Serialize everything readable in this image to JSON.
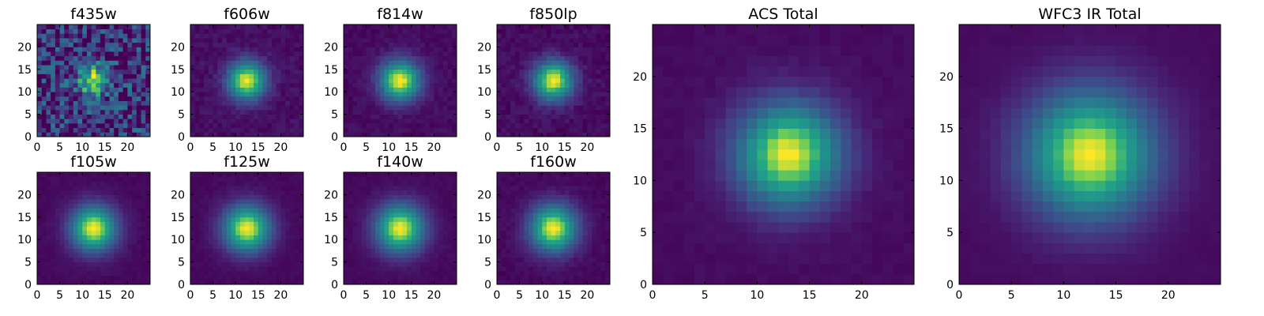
{
  "figure": {
    "colormap": "viridis",
    "grid": false,
    "legend": "none"
  },
  "chart_data": [
    {
      "type": "heatmap",
      "title": "f435w",
      "grid_size": 25,
      "center": [
        12,
        12
      ],
      "spread": 2.4,
      "noise": 0.35,
      "background": 0.18,
      "xlim": [
        0,
        25
      ],
      "ylim": [
        0,
        25
      ],
      "xticks": [
        0,
        5,
        10,
        15,
        20
      ],
      "yticks": [
        0,
        5,
        10,
        15,
        20
      ]
    },
    {
      "type": "heatmap",
      "title": "f606w",
      "grid_size": 25,
      "center": [
        12,
        12
      ],
      "spread": 3.0,
      "noise": 0.05,
      "background": 0.05,
      "xlim": [
        0,
        25
      ],
      "ylim": [
        0,
        25
      ],
      "xticks": [
        0,
        5,
        10,
        15,
        20
      ],
      "yticks": [
        0,
        5,
        10,
        15,
        20
      ]
    },
    {
      "type": "heatmap",
      "title": "f814w",
      "grid_size": 25,
      "center": [
        12,
        12
      ],
      "spread": 3.2,
      "noise": 0.04,
      "background": 0.04,
      "xlim": [
        0,
        25
      ],
      "ylim": [
        0,
        25
      ],
      "xticks": [
        0,
        5,
        10,
        15,
        20
      ],
      "yticks": [
        0,
        5,
        10,
        15,
        20
      ]
    },
    {
      "type": "heatmap",
      "title": "f850lp",
      "grid_size": 25,
      "center": [
        12,
        12
      ],
      "spread": 3.1,
      "noise": 0.05,
      "background": 0.04,
      "xlim": [
        0,
        25
      ],
      "ylim": [
        0,
        25
      ],
      "xticks": [
        0,
        5,
        10,
        15,
        20
      ],
      "yticks": [
        0,
        5,
        10,
        15,
        20
      ]
    },
    {
      "type": "heatmap",
      "title": "f105w",
      "grid_size": 25,
      "center": [
        12,
        12
      ],
      "spread": 3.6,
      "noise": 0.02,
      "background": 0.03,
      "xlim": [
        0,
        25
      ],
      "ylim": [
        0,
        25
      ],
      "xticks": [
        0,
        5,
        10,
        15,
        20
      ],
      "yticks": [
        0,
        5,
        10,
        15,
        20
      ]
    },
    {
      "type": "heatmap",
      "title": "f125w",
      "grid_size": 25,
      "center": [
        12,
        12
      ],
      "spread": 3.7,
      "noise": 0.02,
      "background": 0.03,
      "xlim": [
        0,
        25
      ],
      "ylim": [
        0,
        25
      ],
      "xticks": [
        0,
        5,
        10,
        15,
        20
      ],
      "yticks": [
        0,
        5,
        10,
        15,
        20
      ]
    },
    {
      "type": "heatmap",
      "title": "f140w",
      "grid_size": 25,
      "center": [
        12,
        12
      ],
      "spread": 3.8,
      "noise": 0.02,
      "background": 0.03,
      "xlim": [
        0,
        25
      ],
      "ylim": [
        0,
        25
      ],
      "xticks": [
        0,
        5,
        10,
        15,
        20
      ],
      "yticks": [
        0,
        5,
        10,
        15,
        20
      ]
    },
    {
      "type": "heatmap",
      "title": "f160w",
      "grid_size": 25,
      "center": [
        12,
        12
      ],
      "spread": 3.7,
      "noise": 0.03,
      "background": 0.03,
      "xlim": [
        0,
        25
      ],
      "ylim": [
        0,
        25
      ],
      "xticks": [
        0,
        5,
        10,
        15,
        20
      ],
      "yticks": [
        0,
        5,
        10,
        15,
        20
      ]
    },
    {
      "type": "heatmap",
      "title": "ACS Total",
      "grid_size": 25,
      "center": [
        12.5,
        12
      ],
      "spread": 3.5,
      "noise": 0.02,
      "background": 0.04,
      "xlim": [
        0,
        25
      ],
      "ylim": [
        0,
        25
      ],
      "xticks": [
        0,
        5,
        10,
        15,
        20
      ],
      "yticks": [
        0,
        5,
        10,
        15,
        20
      ]
    },
    {
      "type": "heatmap",
      "title": "WFC3 IR Total",
      "grid_size": 25,
      "center": [
        12,
        12
      ],
      "spread": 4.3,
      "noise": 0.01,
      "background": 0.04,
      "xlim": [
        0,
        25
      ],
      "ylim": [
        0,
        25
      ],
      "xticks": [
        0,
        5,
        10,
        15,
        20
      ],
      "yticks": [
        0,
        5,
        10,
        15,
        20
      ]
    }
  ]
}
